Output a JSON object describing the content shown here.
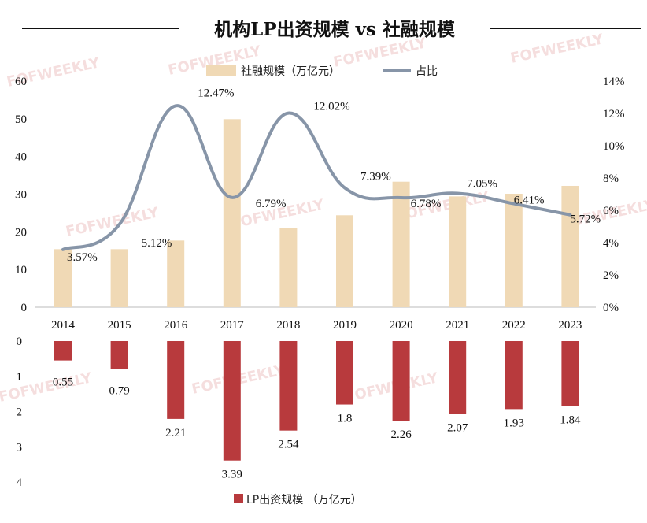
{
  "chart_data": [
    {
      "type": "bar+line",
      "title": "机构LP出资规模 vs 社融规模",
      "categories": [
        "2014",
        "2015",
        "2016",
        "2017",
        "2018",
        "2019",
        "2020",
        "2021",
        "2022",
        "2023"
      ],
      "series": [
        {
          "name": "社融规模（万亿元）",
          "type": "bar",
          "axis": "left",
          "color": "#f0d9b5",
          "values": [
            15.4,
            15.4,
            17.7,
            49.9,
            21.1,
            24.4,
            33.3,
            29.4,
            30.1,
            32.2
          ]
        },
        {
          "name": "占比",
          "type": "line",
          "axis": "right",
          "color": "#8795a8",
          "values": [
            3.57,
            5.12,
            12.47,
            6.79,
            12.02,
            7.39,
            6.78,
            7.05,
            6.41,
            5.72
          ],
          "labels": [
            "3.57%",
            "5.12%",
            "12.47%",
            "6.79%",
            "12.02%",
            "7.39%",
            "6.78%",
            "7.05%",
            "6.41%",
            "5.72%"
          ]
        }
      ],
      "left_axis": {
        "range": [
          0,
          60
        ],
        "ticks": [
          "0",
          "10",
          "20",
          "30",
          "40",
          "50",
          "60"
        ]
      },
      "right_axis": {
        "range": [
          0,
          14
        ],
        "ticks": [
          "0%",
          "2%",
          "4%",
          "6%",
          "8%",
          "10%",
          "12%",
          "14%"
        ]
      },
      "legend": "top-center"
    },
    {
      "type": "bar",
      "inverted": true,
      "categories": [
        "2014",
        "2015",
        "2016",
        "2017",
        "2018",
        "2019",
        "2020",
        "2021",
        "2022",
        "2023"
      ],
      "series": [
        {
          "name": "LP出资规模 （万亿元）",
          "color": "#b83a3d",
          "values": [
            0.55,
            0.79,
            2.21,
            3.39,
            2.54,
            1.8,
            2.26,
            2.07,
            1.93,
            1.84
          ],
          "labels": [
            "0.55",
            "0.79",
            "2.21",
            "3.39",
            "2.54",
            "1.8",
            "2.26",
            "2.07",
            "1.93",
            "1.84"
          ]
        }
      ],
      "y_axis": {
        "range": [
          0,
          4
        ],
        "ticks": [
          "0",
          "1",
          "2",
          "3",
          "4"
        ]
      },
      "legend": "bottom-center"
    }
  ],
  "watermark": "FOFWEEKLY"
}
